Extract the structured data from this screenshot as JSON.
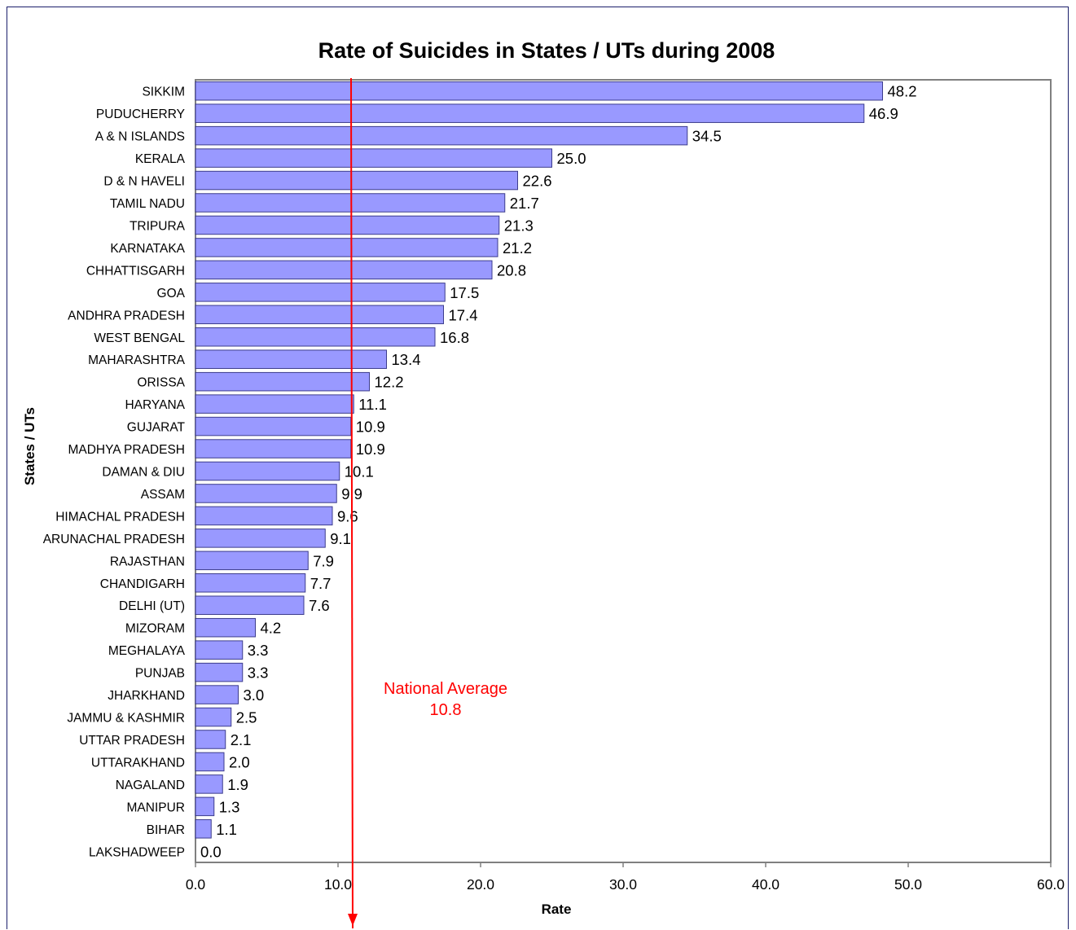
{
  "chart_data": {
    "type": "bar",
    "orientation": "horizontal",
    "title": "Rate of Suicides in States / UTs during 2008",
    "xlabel": "Rate",
    "ylabel": "States / UTs",
    "xlim": [
      0,
      60
    ],
    "xticks": [
      0,
      10,
      20,
      30,
      40,
      50,
      60
    ],
    "xtick_labels": [
      "0.0",
      "10.0",
      "20.0",
      "30.0",
      "40.0",
      "50.0",
      "60.0"
    ],
    "grid": false,
    "colors": {
      "bar": "#9999ff",
      "bar_edge": "#3c3c8c",
      "reference_line": "#ff0000"
    },
    "categories": [
      "SIKKIM",
      "PUDUCHERRY",
      "A & N ISLANDS",
      "KERALA",
      "D & N HAVELI",
      "TAMIL NADU",
      "TRIPURA",
      "KARNATAKA",
      "CHHATTISGARH",
      "GOA",
      "ANDHRA PRADESH",
      "WEST BENGAL",
      "MAHARASHTRA",
      "ORISSA",
      "HARYANA",
      "GUJARAT",
      "MADHYA PRADESH",
      "DAMAN & DIU",
      "ASSAM",
      "HIMACHAL PRADESH",
      "ARUNACHAL PRADESH",
      "RAJASTHAN",
      "CHANDIGARH",
      "DELHI (UT)",
      "MIZORAM",
      "MEGHALAYA",
      "PUNJAB",
      "JHARKHAND",
      "JAMMU & KASHMIR",
      "UTTAR PRADESH",
      "UTTARAKHAND",
      "NAGALAND",
      "MANIPUR",
      "BIHAR",
      "LAKSHADWEEP"
    ],
    "values": [
      48.2,
      46.9,
      34.5,
      25.0,
      22.6,
      21.7,
      21.3,
      21.2,
      20.8,
      17.5,
      17.4,
      16.8,
      13.4,
      12.2,
      11.1,
      10.9,
      10.9,
      10.1,
      9.9,
      9.6,
      9.1,
      7.9,
      7.7,
      7.6,
      4.2,
      3.3,
      3.3,
      3.0,
      2.5,
      2.1,
      2.0,
      1.9,
      1.3,
      1.1,
      0.0
    ],
    "value_labels": [
      "48.2",
      "46.9",
      "34.5",
      "25.0",
      "22.6",
      "21.7",
      "21.3",
      "21.2",
      "20.8",
      "17.5",
      "17.4",
      "16.8",
      "13.4",
      "12.2",
      "11.1",
      "10.9",
      "10.9",
      "10.1",
      "9.9",
      "9.6",
      "9.1",
      "7.9",
      "7.7",
      "7.6",
      "4.2",
      "3.3",
      "3.3",
      "3.0",
      "2.5",
      "2.1",
      "2.0",
      "1.9",
      "1.3",
      "1.1",
      "0.0"
    ],
    "reference_line": {
      "value": 10.8,
      "label_line1": "National Average",
      "label_line2": "10.8"
    }
  }
}
